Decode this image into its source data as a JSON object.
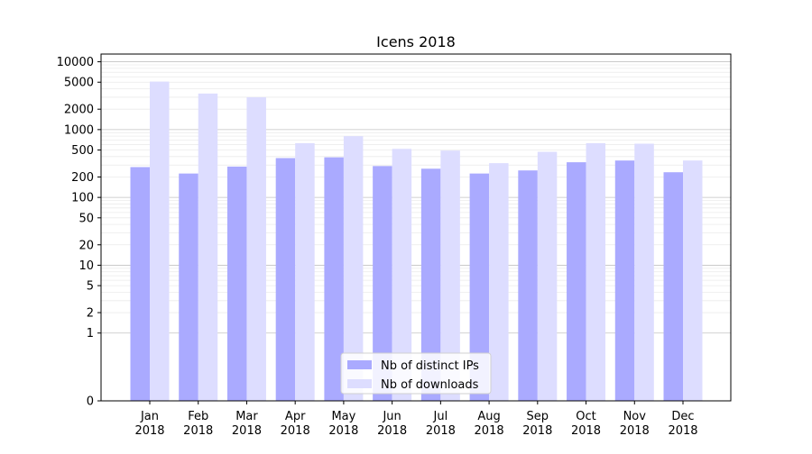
{
  "chart_data": {
    "type": "bar",
    "title": "Icens 2018",
    "xlabel": "",
    "ylabel": "",
    "yscale": "symlog",
    "ylim": [
      0,
      13000
    ],
    "yticks": [
      0,
      1,
      2,
      5,
      10,
      20,
      50,
      100,
      200,
      500,
      1000,
      2000,
      5000,
      10000
    ],
    "ytick_labels": [
      "0",
      "1",
      "2",
      "5",
      "10",
      "20",
      "50",
      "100",
      "200",
      "500",
      "1000",
      "2000",
      "5000",
      "10000"
    ],
    "grid": true,
    "legend_position": "bottom-center",
    "categories": [
      [
        "Jan",
        "2018"
      ],
      [
        "Feb",
        "2018"
      ],
      [
        "Mar",
        "2018"
      ],
      [
        "Apr",
        "2018"
      ],
      [
        "May",
        "2018"
      ],
      [
        "Jun",
        "2018"
      ],
      [
        "Jul",
        "2018"
      ],
      [
        "Aug",
        "2018"
      ],
      [
        "Sep",
        "2018"
      ],
      [
        "Oct",
        "2018"
      ],
      [
        "Nov",
        "2018"
      ],
      [
        "Dec",
        "2018"
      ]
    ],
    "series": [
      {
        "name": "Nb of distinct IPs",
        "color": "#aaaaff",
        "values": [
          280,
          225,
          285,
          380,
          390,
          290,
          265,
          225,
          250,
          330,
          350,
          235
        ]
      },
      {
        "name": "Nb of downloads",
        "color": "#ddddff",
        "values": [
          5100,
          3400,
          3000,
          630,
          800,
          520,
          490,
          320,
          470,
          630,
          620,
          350
        ]
      }
    ]
  }
}
